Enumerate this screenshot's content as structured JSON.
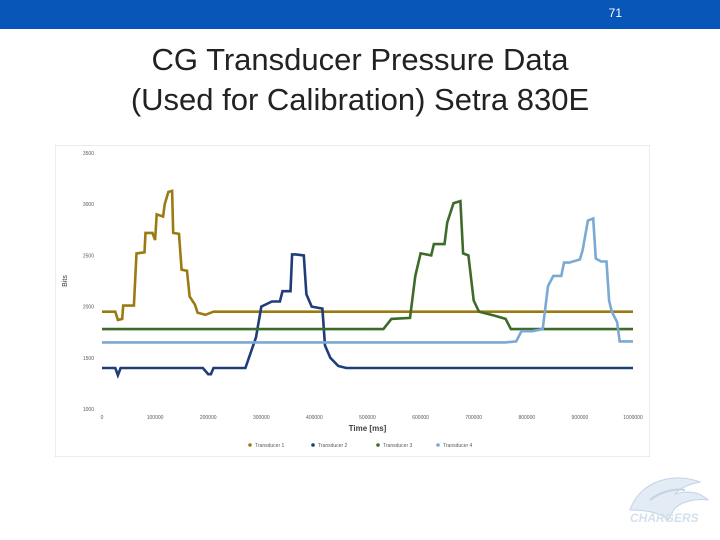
{
  "slide": {
    "number": "71",
    "title_line1": "CG Transducer Pressure Data",
    "title_line2": "(Used for Calibration) Setra 830E",
    "logo_text": "CHARGERS"
  },
  "colors": {
    "header_bar": "#0857b8",
    "series": [
      "#9c7a12",
      "#1f3d78",
      "#3e6b2a",
      "#7aa9d4"
    ]
  },
  "chart_data": {
    "type": "line",
    "title": "",
    "xlabel": "Time [ms]",
    "ylabel": "Bits",
    "xlim": [
      0,
      1000000
    ],
    "ylim": [
      1000,
      3500
    ],
    "xticks": [
      0,
      100000,
      200000,
      300000,
      400000,
      500000,
      600000,
      700000,
      800000,
      900000,
      1000000
    ],
    "yticks": [
      1000,
      1500,
      2000,
      2500,
      3000,
      3500
    ],
    "xtick_labels": [
      "0",
      "100000",
      "200000",
      "300000",
      "400000",
      "500000",
      "600000",
      "700000",
      "800000",
      "900000",
      "1000000"
    ],
    "ytick_labels": [
      "1000",
      "1500",
      "2000",
      "2500",
      "3000",
      "3500"
    ],
    "legend_position": "bottom",
    "grid": false,
    "series": [
      {
        "name": "Transducer 1",
        "color": "#9c7a12",
        "points": [
          [
            0,
            1950
          ],
          [
            25000,
            1950
          ],
          [
            30000,
            1870
          ],
          [
            38000,
            1880
          ],
          [
            40000,
            2010
          ],
          [
            60000,
            2010
          ],
          [
            65000,
            2520
          ],
          [
            80000,
            2530
          ],
          [
            82000,
            2720
          ],
          [
            95000,
            2720
          ],
          [
            100000,
            2650
          ],
          [
            103000,
            2900
          ],
          [
            115000,
            2880
          ],
          [
            118000,
            3000
          ],
          [
            125000,
            3120
          ],
          [
            132000,
            3130
          ],
          [
            134000,
            2720
          ],
          [
            145000,
            2710
          ],
          [
            150000,
            2360
          ],
          [
            160000,
            2350
          ],
          [
            165000,
            2100
          ],
          [
            175000,
            2020
          ],
          [
            180000,
            1940
          ],
          [
            195000,
            1920
          ],
          [
            210000,
            1950
          ],
          [
            1000000,
            1950
          ]
        ]
      },
      {
        "name": "Transducer 2",
        "color": "#1f3d78",
        "points": [
          [
            0,
            1400
          ],
          [
            25000,
            1400
          ],
          [
            30000,
            1330
          ],
          [
            35000,
            1400
          ],
          [
            190000,
            1400
          ],
          [
            200000,
            1340
          ],
          [
            205000,
            1340
          ],
          [
            210000,
            1400
          ],
          [
            270000,
            1400
          ],
          [
            290000,
            1700
          ],
          [
            300000,
            2000
          ],
          [
            320000,
            2050
          ],
          [
            335000,
            2050
          ],
          [
            340000,
            2150
          ],
          [
            355000,
            2150
          ],
          [
            358000,
            2510
          ],
          [
            365000,
            2510
          ],
          [
            380000,
            2500
          ],
          [
            385000,
            2120
          ],
          [
            395000,
            2000
          ],
          [
            415000,
            1980
          ],
          [
            420000,
            1620
          ],
          [
            430000,
            1500
          ],
          [
            445000,
            1420
          ],
          [
            460000,
            1400
          ],
          [
            1000000,
            1400
          ]
        ]
      },
      {
        "name": "Transducer 3",
        "color": "#3e6b2a",
        "points": [
          [
            0,
            1780
          ],
          [
            530000,
            1780
          ],
          [
            545000,
            1880
          ],
          [
            580000,
            1890
          ],
          [
            590000,
            2300
          ],
          [
            600000,
            2520
          ],
          [
            620000,
            2500
          ],
          [
            625000,
            2610
          ],
          [
            645000,
            2610
          ],
          [
            650000,
            2820
          ],
          [
            662000,
            3010
          ],
          [
            675000,
            3030
          ],
          [
            680000,
            2520
          ],
          [
            690000,
            2500
          ],
          [
            700000,
            2060
          ],
          [
            710000,
            1950
          ],
          [
            740000,
            1910
          ],
          [
            760000,
            1880
          ],
          [
            770000,
            1780
          ],
          [
            1000000,
            1780
          ]
        ]
      },
      {
        "name": "Transducer 4",
        "color": "#7aa9d4",
        "points": [
          [
            0,
            1650
          ],
          [
            760000,
            1650
          ],
          [
            780000,
            1660
          ],
          [
            790000,
            1760
          ],
          [
            810000,
            1760
          ],
          [
            830000,
            1780
          ],
          [
            840000,
            2200
          ],
          [
            850000,
            2300
          ],
          [
            865000,
            2300
          ],
          [
            870000,
            2430
          ],
          [
            880000,
            2430
          ],
          [
            900000,
            2460
          ],
          [
            905000,
            2550
          ],
          [
            915000,
            2840
          ],
          [
            925000,
            2860
          ],
          [
            930000,
            2470
          ],
          [
            940000,
            2440
          ],
          [
            950000,
            2440
          ],
          [
            955000,
            2060
          ],
          [
            960000,
            1950
          ],
          [
            970000,
            1850
          ],
          [
            975000,
            1660
          ],
          [
            1000000,
            1660
          ]
        ]
      }
    ]
  }
}
